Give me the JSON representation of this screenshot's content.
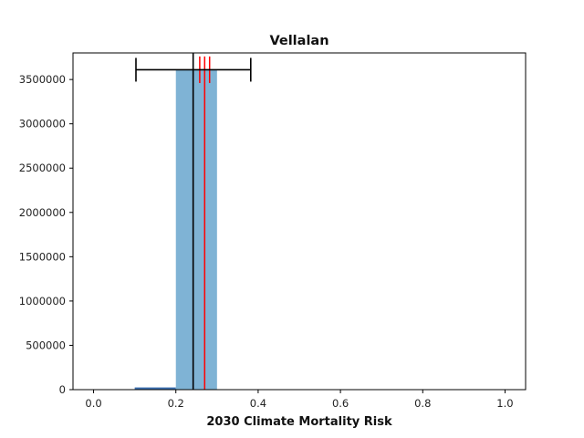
{
  "chart_data": {
    "type": "bar",
    "title": "Vellalan",
    "xlabel": "2030 Climate Mortality Risk",
    "ylabel": "",
    "xlim": [
      -0.05,
      1.05
    ],
    "ylim": [
      0,
      3800000
    ],
    "x_ticks": [
      0.0,
      0.2,
      0.4,
      0.6,
      0.8,
      1.0
    ],
    "x_tick_labels": [
      "0.0",
      "0.2",
      "0.4",
      "0.6",
      "0.8",
      "1.0"
    ],
    "y_ticks": [
      0,
      500000,
      1000000,
      1500000,
      2000000,
      2500000,
      3000000,
      3500000
    ],
    "y_tick_labels": [
      "0",
      "500000",
      "1000000",
      "1500000",
      "2000000",
      "2500000",
      "3000000",
      "3500000"
    ],
    "bins": [
      {
        "x0": 0.1,
        "x1": 0.2,
        "value": 25000,
        "color": "#3b6fb0"
      },
      {
        "x0": 0.2,
        "x1": 0.3,
        "value": 3610000,
        "color": "#7fb3d5"
      }
    ],
    "mean_line": {
      "x": 0.242,
      "color": "#000000"
    },
    "interval": {
      "low": 0.103,
      "high": 0.382,
      "y": 3610000,
      "color": "#000000"
    },
    "red_lines": {
      "values": [
        0.258,
        0.27,
        0.282
      ],
      "ymin": 3460000,
      "ymax": 3760000,
      "center_full": true,
      "color": "#ff0000"
    },
    "grid": false,
    "legend": "none"
  }
}
